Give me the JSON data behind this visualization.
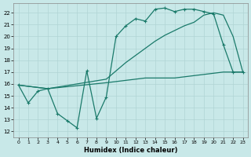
{
  "xlabel": "Humidex (Indice chaleur)",
  "bg_color": "#c8e8e8",
  "grid_color": "#b0d4d4",
  "line_color": "#1a7a6a",
  "xlim": [
    -0.5,
    23.5
  ],
  "ylim": [
    11.5,
    22.8
  ],
  "yticks": [
    12,
    13,
    14,
    15,
    16,
    17,
    18,
    19,
    20,
    21,
    22
  ],
  "xticks": [
    0,
    1,
    2,
    3,
    4,
    5,
    6,
    7,
    8,
    9,
    10,
    11,
    12,
    13,
    14,
    15,
    16,
    17,
    18,
    19,
    20,
    21,
    22,
    23
  ],
  "curve1_x": [
    0,
    1,
    2,
    3,
    4,
    5,
    6,
    7,
    8,
    9,
    10,
    11,
    12,
    13,
    14,
    15,
    16,
    17,
    18,
    19,
    20,
    21,
    22,
    23
  ],
  "curve1_y": [
    15.9,
    14.4,
    15.4,
    15.6,
    13.5,
    12.9,
    12.3,
    17.1,
    13.1,
    14.9,
    20.0,
    20.9,
    21.5,
    21.3,
    22.3,
    22.4,
    22.1,
    22.3,
    22.3,
    22.1,
    21.9,
    19.3,
    17.0,
    17.0
  ],
  "curve2_x": [
    0,
    3,
    9,
    10,
    11,
    12,
    13,
    14,
    15,
    16,
    17,
    18,
    19,
    20,
    21,
    22,
    23
  ],
  "curve2_y": [
    15.9,
    15.6,
    16.4,
    17.1,
    17.8,
    18.4,
    19.0,
    19.6,
    20.1,
    20.5,
    20.9,
    21.2,
    21.8,
    22.0,
    21.8,
    20.0,
    17.0
  ],
  "curve3_x": [
    0,
    3,
    9,
    10,
    11,
    12,
    13,
    14,
    15,
    16,
    17,
    18,
    19,
    20,
    21,
    22,
    23
  ],
  "curve3_y": [
    15.9,
    15.6,
    16.1,
    16.2,
    16.3,
    16.4,
    16.5,
    16.5,
    16.5,
    16.5,
    16.6,
    16.7,
    16.8,
    16.9,
    17.0,
    17.0,
    17.0
  ]
}
